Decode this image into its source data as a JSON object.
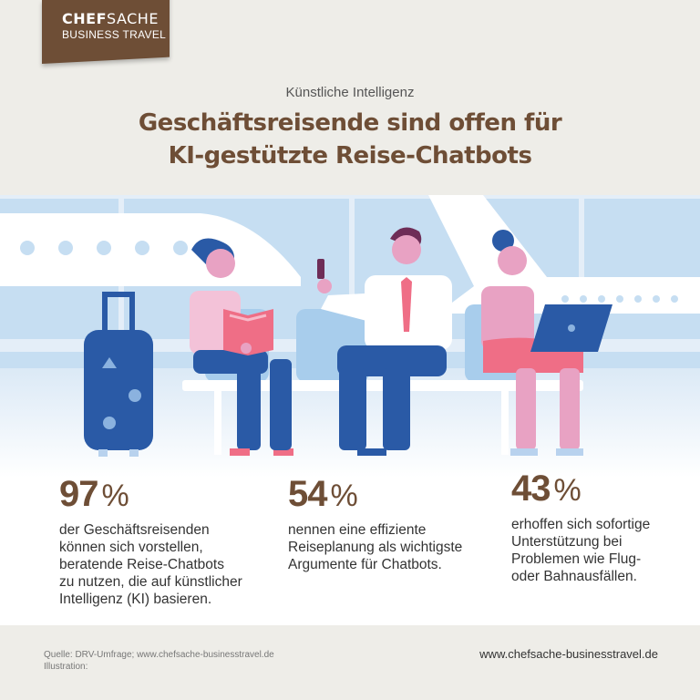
{
  "logo": {
    "brand_bold": "CHEF",
    "brand_rest": "SACHE",
    "sub": "BUSINESS TRAVEL"
  },
  "header": {
    "kicker": "Künstliche Intelligenz",
    "title_line1": "Geschäftsreisende sind offen für",
    "title_line2": "KI-gestützte Reise-Chatbots"
  },
  "stats": [
    {
      "value": "97",
      "unit": "%",
      "lines": [
        "der Geschäftsreisenden",
        "können sich vorstellen,",
        "beratende Reise-Chatbots",
        "zu nutzen, die auf künstlicher",
        "Intelligenz (KI) basieren."
      ]
    },
    {
      "value": "54",
      "unit": "%",
      "lines": [
        "nennen eine effiziente",
        "Reiseplanung als wichtigste",
        "Argumente für Chatbots."
      ]
    },
    {
      "value": "43",
      "unit": "%",
      "lines": [
        "erhoffen sich sofortige",
        "Unterstützung bei",
        "Problemen wie Flug-",
        "oder Bahnausfällen."
      ]
    }
  ],
  "footer": {
    "source_line1": "Quelle: DRV-Umfrage; www.chefsache-businesstravel.de",
    "source_line2": "Illustration:",
    "website": "www.chefsache-businesstravel.de"
  },
  "colors": {
    "brand_brown": "#6e4e36",
    "sky_blue": "#c6def2",
    "navy": "#2a5aa6",
    "pink": "#e8a2c3",
    "coral": "#ef6e86"
  }
}
